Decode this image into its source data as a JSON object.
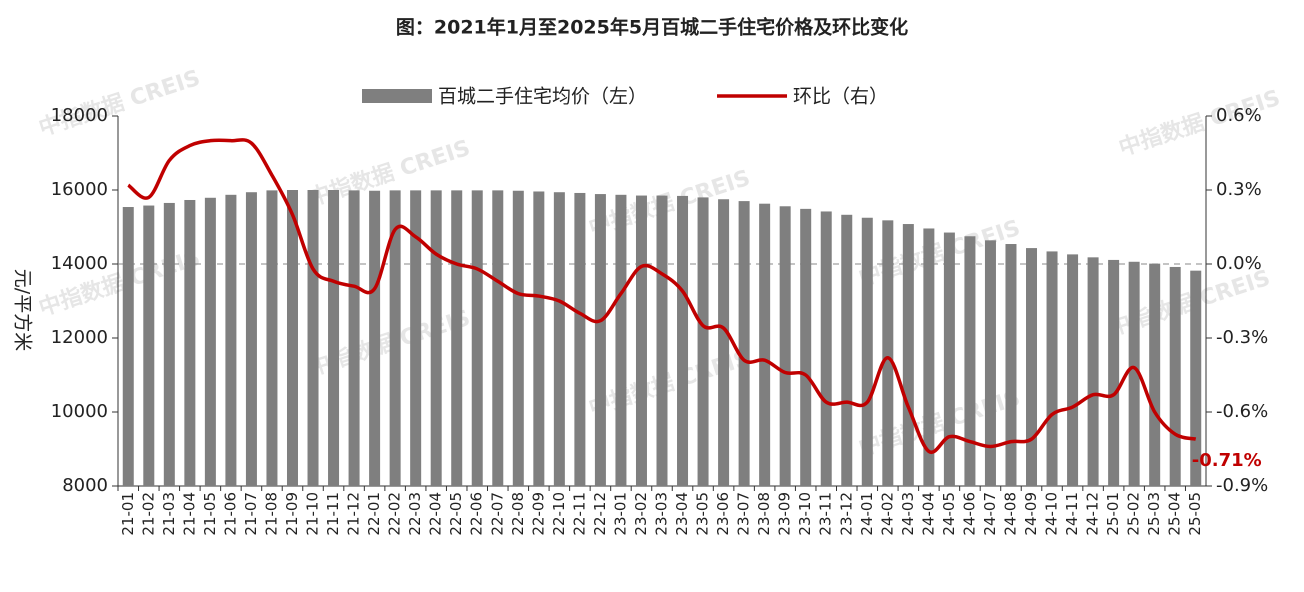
{
  "chart_data": {
    "type": "bar_line",
    "title": "图：2021年1月至2025年5月百城二手住宅价格及环比变化",
    "ylabel": "元/平方米",
    "watermark": "中指数据 CREIS",
    "categories": [
      "21-01",
      "21-02",
      "21-03",
      "21-04",
      "21-05",
      "21-06",
      "21-07",
      "21-08",
      "21-09",
      "21-10",
      "21-11",
      "21-12",
      "22-01",
      "22-02",
      "22-03",
      "22-04",
      "22-05",
      "22-06",
      "22-07",
      "22-08",
      "22-09",
      "22-10",
      "22-11",
      "22-12",
      "23-01",
      "23-02",
      "23-03",
      "23-04",
      "23-05",
      "23-06",
      "23-07",
      "23-08",
      "23-09",
      "23-10",
      "23-11",
      "23-12",
      "24-01",
      "24-02",
      "24-03",
      "24-04",
      "24-05",
      "24-06",
      "24-07",
      "24-08",
      "24-09",
      "24-10",
      "24-11",
      "24-12",
      "25-01",
      "25-02",
      "25-03",
      "25-04",
      "25-05"
    ],
    "series": [
      {
        "name": "百城二手住宅均价（左）",
        "color": "#7f7f7f",
        "type": "bar",
        "values": [
          15540,
          15580,
          15650,
          15730,
          15790,
          15870,
          15940,
          15990,
          16000,
          16000,
          16000,
          15990,
          15980,
          15990,
          15990,
          15990,
          15990,
          15990,
          15990,
          15980,
          15960,
          15940,
          15920,
          15890,
          15870,
          15850,
          15850,
          15840,
          15800,
          15750,
          15700,
          15630,
          15560,
          15490,
          15420,
          15330,
          15250,
          15180,
          15080,
          14960,
          14850,
          14750,
          14640,
          14540,
          14430,
          14340,
          14260,
          14180,
          14110,
          14060,
          14010,
          13920,
          13820
        ]
      },
      {
        "name": "环比（右）",
        "color": "#c00000",
        "type": "line",
        "axis": "y2",
        "values": [
          0.32,
          0.27,
          0.42,
          0.48,
          0.5,
          0.5,
          0.49,
          0.36,
          0.2,
          -0.02,
          -0.07,
          -0.09,
          -0.1,
          0.14,
          0.11,
          0.04,
          0.0,
          -0.02,
          -0.07,
          -0.12,
          -0.13,
          -0.15,
          -0.2,
          -0.23,
          -0.12,
          -0.01,
          -0.04,
          -0.11,
          -0.25,
          -0.26,
          -0.39,
          -0.39,
          -0.44,
          -0.45,
          -0.56,
          -0.56,
          -0.56,
          -0.38,
          -0.58,
          -0.76,
          -0.7,
          -0.72,
          -0.74,
          -0.72,
          -0.71,
          -0.61,
          -0.58,
          -0.53,
          -0.53,
          -0.42,
          -0.6,
          -0.69,
          -0.71
        ],
        "value_labels": [
          null,
          null,
          null,
          null,
          null,
          null,
          null,
          null,
          null,
          null,
          null,
          null,
          null,
          null,
          null,
          null,
          null,
          null,
          null,
          null,
          null,
          null,
          null,
          null,
          null,
          null,
          null,
          null,
          null,
          null,
          null,
          null,
          null,
          null,
          null,
          null,
          null,
          null,
          null,
          null,
          null,
          null,
          null,
          null,
          null,
          null,
          null,
          null,
          null,
          null,
          null,
          null,
          "-0.71%"
        ]
      }
    ],
    "ylim": [
      8000,
      18000
    ],
    "yticks": [
      8000,
      10000,
      12000,
      14000,
      16000,
      18000
    ],
    "y2lim": [
      -0.9,
      0.6
    ],
    "y2ticks": [
      {
        "value": -0.9,
        "label": "-0.9%"
      },
      {
        "value": -0.6,
        "label": "-0.6%"
      },
      {
        "value": -0.3,
        "label": "-0.3%"
      },
      {
        "value": 0.0,
        "label": "0.0%"
      },
      {
        "value": 0.3,
        "label": "0.3%"
      },
      {
        "value": 0.6,
        "label": "0.6%"
      }
    ],
    "zero_line": true,
    "legend": "top"
  }
}
